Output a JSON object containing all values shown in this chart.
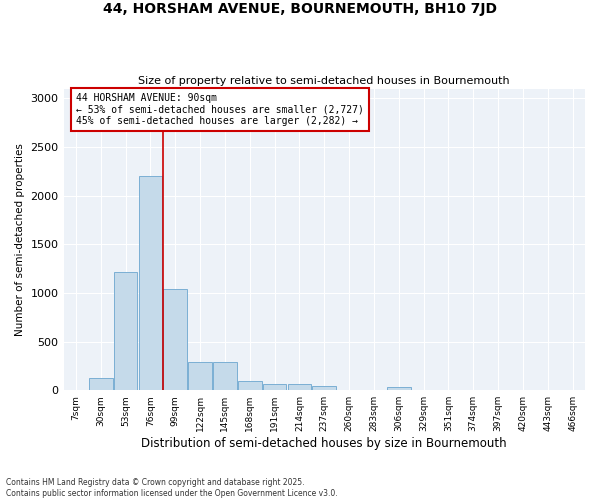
{
  "title": "44, HORSHAM AVENUE, BOURNEMOUTH, BH10 7JD",
  "subtitle": "Size of property relative to semi-detached houses in Bournemouth",
  "xlabel": "Distribution of semi-detached houses by size in Bournemouth",
  "ylabel": "Number of semi-detached properties",
  "bar_color": "#c5daea",
  "bar_edge_color": "#7bafd4",
  "background_color": "#edf2f8",
  "annotation_text": "44 HORSHAM AVENUE: 90sqm\n← 53% of semi-detached houses are smaller (2,727)\n45% of semi-detached houses are larger (2,282) →",
  "categories": [
    "7sqm",
    "30sqm",
    "53sqm",
    "76sqm",
    "99sqm",
    "122sqm",
    "145sqm",
    "168sqm",
    "191sqm",
    "214sqm",
    "237sqm",
    "260sqm",
    "283sqm",
    "306sqm",
    "329sqm",
    "351sqm",
    "374sqm",
    "397sqm",
    "420sqm",
    "443sqm",
    "466sqm"
  ],
  "bar_heights": [
    5,
    130,
    1220,
    2200,
    1040,
    290,
    285,
    90,
    65,
    60,
    45,
    0,
    0,
    35,
    0,
    0,
    0,
    0,
    0,
    0,
    0
  ],
  "prop_bar_index": 3.5,
  "ylim": [
    0,
    3100
  ],
  "yticks": [
    0,
    500,
    1000,
    1500,
    2000,
    2500,
    3000
  ],
  "footer": "Contains HM Land Registry data © Crown copyright and database right 2025.\nContains public sector information licensed under the Open Government Licence v3.0."
}
